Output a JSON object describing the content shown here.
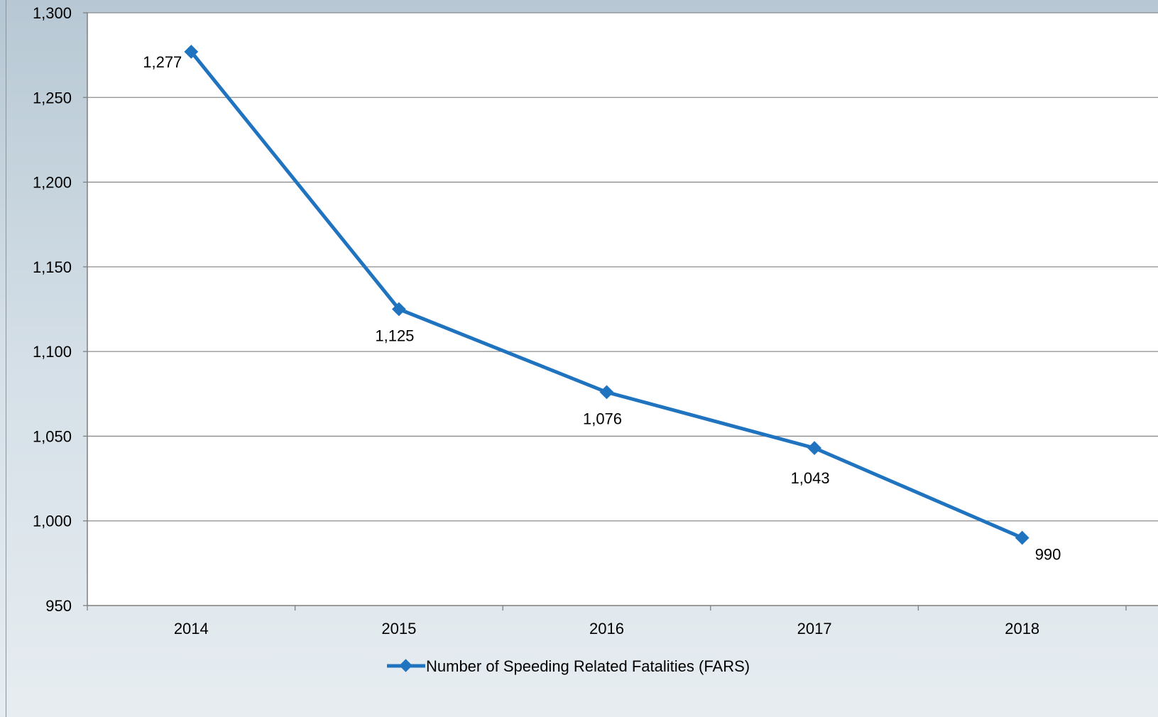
{
  "chart_data": {
    "type": "line",
    "title": "",
    "xlabel": "",
    "ylabel": "",
    "categories": [
      "2014",
      "2015",
      "2016",
      "2017",
      "2018"
    ],
    "ylim": [
      950,
      1300
    ],
    "yticks": [
      950,
      1000,
      1050,
      1100,
      1150,
      1200,
      1250,
      1300
    ],
    "ytick_labels": [
      "950",
      "1,000",
      "1,050",
      "1,100",
      "1,150",
      "1,200",
      "1,250",
      "1,300"
    ],
    "grid": true,
    "legend_position": "bottom",
    "series": [
      {
        "name": "Number of Speeding Related Fatalities (FARS)",
        "values": [
          1277,
          1125,
          1076,
          1043,
          990
        ],
        "labels": [
          "1,277",
          "1,125",
          "1,076",
          "1,043",
          "990"
        ],
        "color": "#1f73bf",
        "marker": "diamond"
      }
    ]
  },
  "colors": {
    "plot_background": "#ffffff",
    "gridline": "#8c8c8c",
    "series_line": "#1f73bf"
  }
}
